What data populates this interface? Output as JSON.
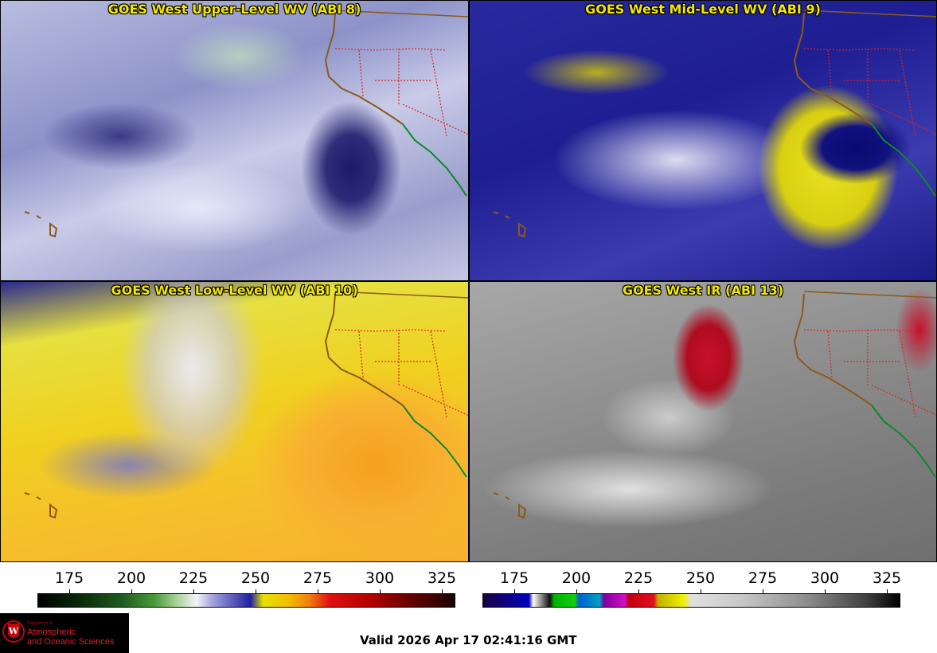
{
  "panels": [
    {
      "title": "GOES West Upper-Level WV (ABI 8)"
    },
    {
      "title": "GOES West Mid-Level WV (ABI 9)"
    },
    {
      "title": "GOES West Low-Level WV (ABI 10)"
    },
    {
      "title": "GOES West IR (ABI 13)"
    }
  ],
  "colorbars": {
    "water_vapor": {
      "ticks": [
        "175",
        "200",
        "225",
        "250",
        "275",
        "300",
        "325"
      ]
    },
    "infrared": {
      "ticks": [
        "175",
        "200",
        "225",
        "250",
        "275",
        "300",
        "325"
      ]
    }
  },
  "logo": {
    "department": "Department of",
    "name_line1": "Atmospheric",
    "name_line2": "and Oceanic Sciences"
  },
  "valid_time": "Valid 2026 Apr 17 02:41:16 GMT",
  "colors": {
    "title_yellow": "#f2e600",
    "coastline": "#8b5a1a",
    "state_borders": "#e02020",
    "mexico_coast": "#0a8a2a"
  }
}
